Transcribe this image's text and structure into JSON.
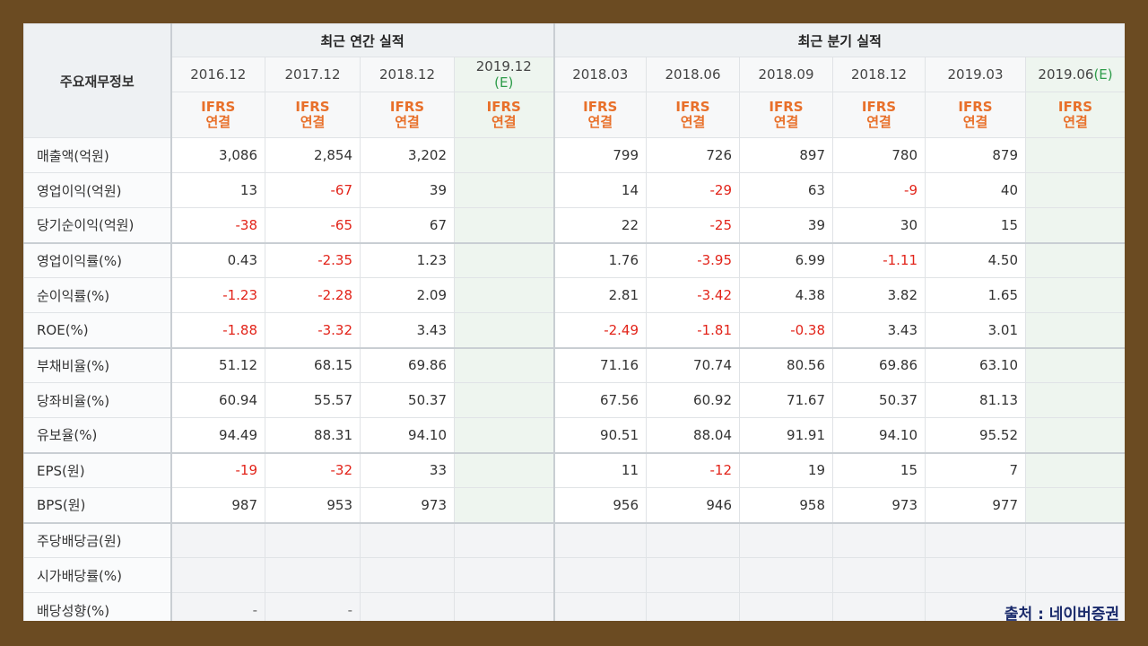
{
  "header": {
    "label": "주요재무정보",
    "annual_title": "최근 연간 실적",
    "quarter_title": "최근 분기 실적",
    "annual_dates": [
      "2016.12",
      "2017.12",
      "2018.12",
      "2019.12"
    ],
    "annual_est": "(E)",
    "quarter_dates": [
      "2018.03",
      "2018.06",
      "2018.09",
      "2018.12",
      "2019.03",
      "2019.06"
    ],
    "quarter_est": "(E)",
    "ifrs_line1": "IFRS",
    "ifrs_line2": "연결"
  },
  "rows": [
    {
      "label": "매출액(억원)",
      "annual": [
        "3,086",
        "2,854",
        "3,202",
        ""
      ],
      "quarter": [
        "799",
        "726",
        "897",
        "780",
        "879",
        ""
      ]
    },
    {
      "label": "영업이익(억원)",
      "annual": [
        "13",
        "-67",
        "39",
        ""
      ],
      "quarter": [
        "14",
        "-29",
        "63",
        "-9",
        "40",
        ""
      ]
    },
    {
      "label": "당기순이익(억원)",
      "annual": [
        "-38",
        "-65",
        "67",
        ""
      ],
      "quarter": [
        "22",
        "-25",
        "39",
        "30",
        "15",
        ""
      ]
    },
    {
      "label": "영업이익률(%)",
      "annual": [
        "0.43",
        "-2.35",
        "1.23",
        ""
      ],
      "quarter": [
        "1.76",
        "-3.95",
        "6.99",
        "-1.11",
        "4.50",
        ""
      ]
    },
    {
      "label": "순이익률(%)",
      "annual": [
        "-1.23",
        "-2.28",
        "2.09",
        ""
      ],
      "quarter": [
        "2.81",
        "-3.42",
        "4.38",
        "3.82",
        "1.65",
        ""
      ]
    },
    {
      "label": "ROE(%)",
      "annual": [
        "-1.88",
        "-3.32",
        "3.43",
        ""
      ],
      "quarter": [
        "-2.49",
        "-1.81",
        "-0.38",
        "3.43",
        "3.01",
        ""
      ]
    },
    {
      "label": "부채비율(%)",
      "annual": [
        "51.12",
        "68.15",
        "69.86",
        ""
      ],
      "quarter": [
        "71.16",
        "70.74",
        "80.56",
        "69.86",
        "63.10",
        ""
      ]
    },
    {
      "label": "당좌비율(%)",
      "annual": [
        "60.94",
        "55.57",
        "50.37",
        ""
      ],
      "quarter": [
        "67.56",
        "60.92",
        "71.67",
        "50.37",
        "81.13",
        ""
      ]
    },
    {
      "label": "유보율(%)",
      "annual": [
        "94.49",
        "88.31",
        "94.10",
        ""
      ],
      "quarter": [
        "90.51",
        "88.04",
        "91.91",
        "94.10",
        "95.52",
        ""
      ]
    },
    {
      "label": "EPS(원)",
      "annual": [
        "-19",
        "-32",
        "33",
        ""
      ],
      "quarter": [
        "11",
        "-12",
        "19",
        "15",
        "7",
        ""
      ]
    },
    {
      "label": "BPS(원)",
      "annual": [
        "987",
        "953",
        "973",
        ""
      ],
      "quarter": [
        "956",
        "946",
        "958",
        "973",
        "977",
        ""
      ]
    },
    {
      "label": "주당배당금(원)",
      "annual": [
        "",
        "",
        "",
        ""
      ],
      "quarter": [
        "",
        "",
        "",
        "",
        "",
        ""
      ]
    },
    {
      "label": "시가배당률(%)",
      "annual": [
        "",
        "",
        "",
        ""
      ],
      "quarter": [
        "",
        "",
        "",
        "",
        "",
        ""
      ]
    },
    {
      "label": "배당성향(%)",
      "annual": [
        "-",
        "-",
        "",
        ""
      ],
      "quarter": [
        "",
        "",
        "",
        "",
        "",
        ""
      ]
    }
  ],
  "source": "출처 : 네이버증권",
  "colors": {
    "negative": "#e2241a",
    "ifrs": "#e8702a",
    "estimate": "#2e9c4a",
    "frame": "#6b4b22"
  }
}
